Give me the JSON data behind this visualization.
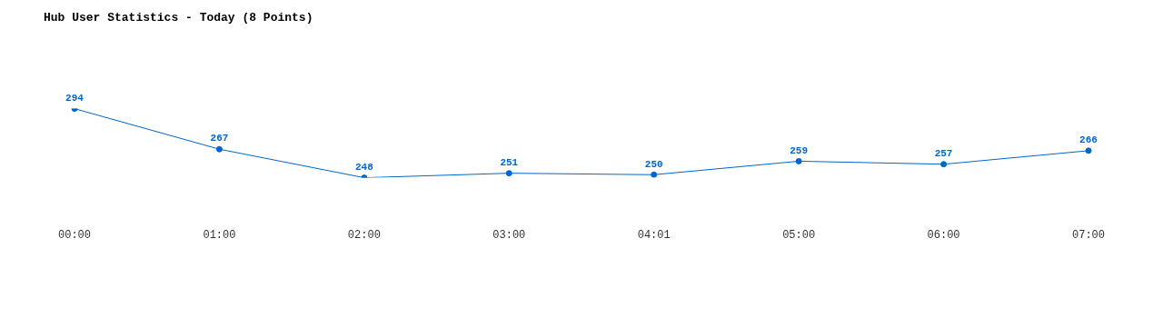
{
  "chart_data": {
    "type": "line",
    "title": "Hub User Statistics - Today (8 Points)",
    "categories": [
      "00:00",
      "01:00",
      "02:00",
      "03:00",
      "04:01",
      "05:00",
      "06:00",
      "07:00"
    ],
    "series": [
      {
        "color": "#0066cc",
        "values": [
          294,
          267,
          248,
          251,
          250,
          259,
          257,
          266
        ]
      }
    ],
    "data_labels": true,
    "marker": "circle",
    "line_style": "solid",
    "grid": false,
    "legend": false
  }
}
